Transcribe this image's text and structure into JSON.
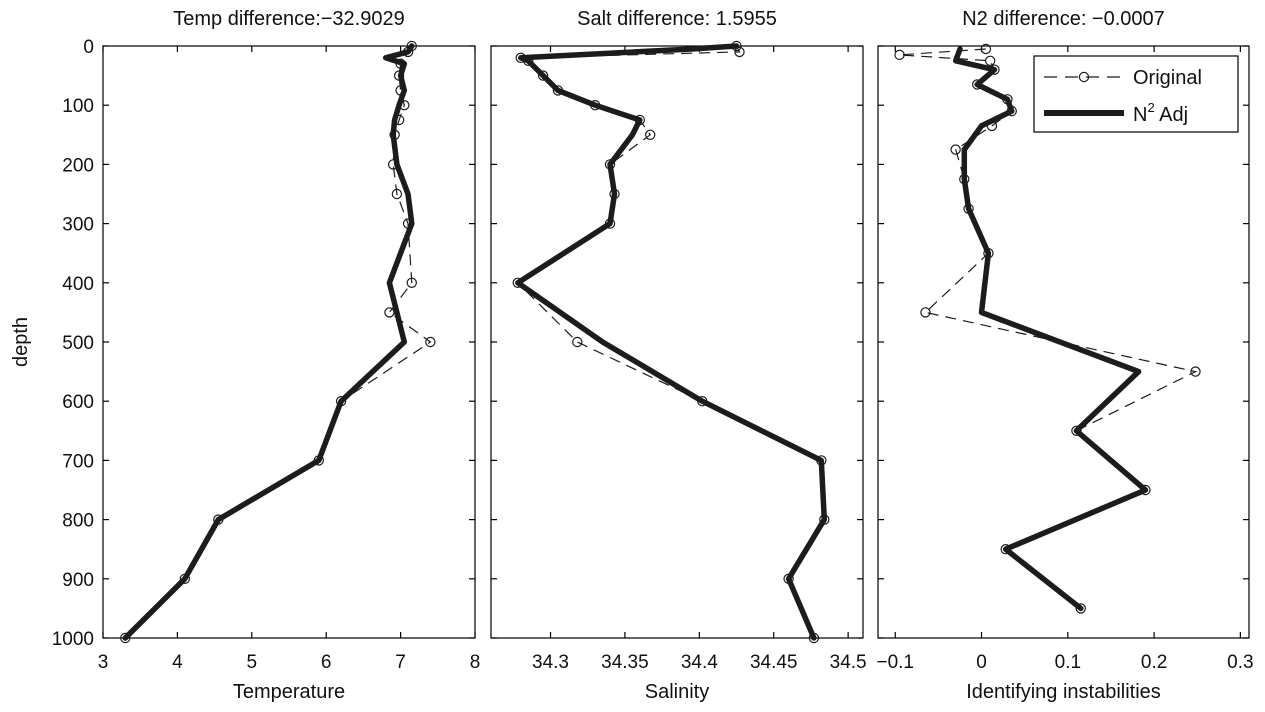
{
  "figure": {
    "ylabel": "depth"
  },
  "legend": {
    "original_label": "Original",
    "adjusted_label_main": "N",
    "adjusted_label_sup": "2",
    "adjusted_label_rest": " Adj"
  },
  "colors": {
    "line": "#1c1c1c",
    "axis": "#000000",
    "background": "#ffffff"
  },
  "chart_data": [
    {
      "type": "line",
      "title": "Temp difference:−32.9029",
      "xlabel": "Temperature",
      "ylabel": "depth",
      "xlim": [
        3,
        8
      ],
      "ylim": [
        0,
        1000
      ],
      "y_reversed": true,
      "xticks": [
        "3",
        "4",
        "5",
        "6",
        "7",
        "8"
      ],
      "yticks": [
        "0",
        "100",
        "200",
        "300",
        "400",
        "500",
        "600",
        "700",
        "800",
        "900",
        "1000"
      ],
      "grid": false,
      "series": [
        {
          "name": "Original",
          "style": "dashed-circle",
          "x": [
            7.15,
            7.1,
            7.0,
            6.98,
            7.0,
            7.05,
            6.98,
            6.92,
            6.9,
            6.95,
            7.1,
            7.15,
            6.85,
            7.4,
            6.2,
            5.9,
            4.55,
            4.1,
            3.3
          ],
          "y": [
            0,
            10,
            30,
            50,
            75,
            100,
            125,
            150,
            200,
            250,
            300,
            400,
            450,
            500,
            600,
            700,
            800,
            900,
            1000
          ]
        },
        {
          "name": "N2 Adj",
          "style": "thick",
          "x": [
            7.15,
            7.1,
            6.8,
            7.05,
            7.0,
            7.05,
            6.98,
            6.92,
            6.9,
            6.95,
            7.1,
            7.15,
            6.85,
            7.05,
            6.2,
            5.9,
            4.55,
            4.1,
            3.3
          ],
          "y": [
            0,
            10,
            20,
            30,
            50,
            75,
            100,
            125,
            150,
            200,
            250,
            300,
            400,
            500,
            600,
            700,
            800,
            900,
            1000
          ]
        }
      ]
    },
    {
      "type": "line",
      "title": "Salt difference:  1.5955",
      "xlabel": "Salinity",
      "xlim": [
        34.26,
        34.51
      ],
      "ylim": [
        0,
        1000
      ],
      "y_reversed": true,
      "xticks": [
        "34.3",
        "34.35",
        "34.4",
        "34.45",
        "34.5"
      ],
      "xtick_values": [
        34.3,
        34.35,
        34.4,
        34.45,
        34.5
      ],
      "grid": false,
      "series": [
        {
          "name": "Original",
          "style": "dashed-circle",
          "x": [
            34.425,
            34.427,
            34.28,
            34.285,
            34.295,
            34.305,
            34.33,
            34.36,
            34.367,
            34.34,
            34.343,
            34.34,
            34.278,
            34.318,
            34.402,
            34.482,
            34.484,
            34.46,
            34.477
          ],
          "y": [
            0,
            10,
            20,
            25,
            50,
            75,
            100,
            125,
            150,
            200,
            250,
            300,
            400,
            500,
            600,
            700,
            800,
            900,
            1000
          ]
        },
        {
          "name": "N2 Adj",
          "style": "thick",
          "x": [
            34.425,
            34.395,
            34.28,
            34.285,
            34.295,
            34.305,
            34.33,
            34.36,
            34.355,
            34.34,
            34.343,
            34.34,
            34.278,
            34.335,
            34.402,
            34.482,
            34.484,
            34.46,
            34.477
          ],
          "y": [
            0,
            5,
            20,
            25,
            50,
            75,
            100,
            125,
            150,
            200,
            250,
            300,
            400,
            500,
            600,
            700,
            800,
            900,
            1000
          ]
        }
      ]
    },
    {
      "type": "line",
      "title": "N2 difference: −0.0007",
      "xlabel": "Identifying instabilities",
      "xlim": [
        -0.12,
        0.31
      ],
      "ylim": [
        0,
        1000
      ],
      "y_reversed": true,
      "xticks": [
        "−0.1",
        "0",
        "0.1",
        "0.2",
        "0.3"
      ],
      "xtick_values": [
        -0.1,
        0,
        0.1,
        0.2,
        0.3
      ],
      "grid": false,
      "series": [
        {
          "name": "Original",
          "style": "dashed-circle",
          "x": [
            0.005,
            -0.095,
            0.01,
            0.015,
            -0.005,
            0.03,
            0.035,
            0.012,
            -0.03,
            -0.02,
            -0.015,
            0.008,
            -0.065,
            0.248,
            0.11,
            0.19,
            0.028,
            0.115
          ],
          "y": [
            5,
            15,
            25,
            40,
            65,
            90,
            110,
            135,
            175,
            225,
            275,
            350,
            450,
            550,
            650,
            750,
            850,
            950
          ]
        },
        {
          "name": "N2 Adj",
          "style": "thick",
          "x": [
            -0.025,
            -0.03,
            0.015,
            -0.005,
            0.03,
            0.035,
            0.0,
            -0.02,
            -0.02,
            -0.015,
            0.008,
            0.0,
            0.182,
            0.11,
            0.19,
            0.028,
            0.115
          ],
          "y": [
            5,
            25,
            40,
            65,
            90,
            110,
            135,
            175,
            225,
            275,
            350,
            450,
            550,
            650,
            750,
            850,
            950
          ]
        }
      ]
    }
  ]
}
